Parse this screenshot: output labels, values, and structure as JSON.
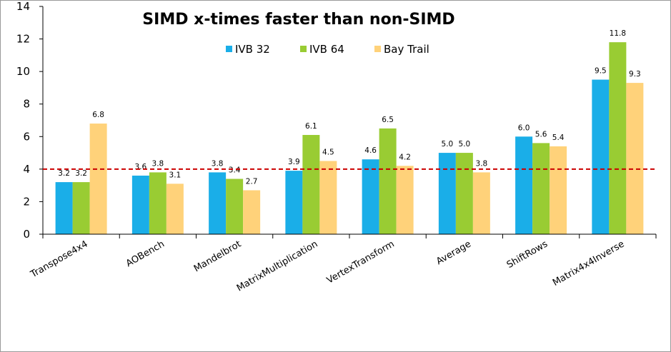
{
  "chart_data": {
    "type": "bar",
    "title": "SIMD x-times faster than non-SIMD",
    "categories": [
      "Transpose4x4",
      "AOBench",
      "Mandelbrot",
      "MatrixMultiplication",
      "VertexTransform",
      "Average",
      "ShiftRows",
      "Matrix4x4Inverse"
    ],
    "series": [
      {
        "name": "IVB 32",
        "color": "#1aaee8",
        "values": [
          3.2,
          3.6,
          3.8,
          3.9,
          4.6,
          5.0,
          6.0,
          9.5
        ],
        "labels": [
          "3.2",
          "3.6",
          "3.8",
          "3.9",
          "4.6",
          "5.0",
          "6.0",
          "9.5"
        ]
      },
      {
        "name": "IVB 64",
        "color": "#99cc33",
        "values": [
          3.2,
          3.8,
          3.4,
          6.1,
          6.5,
          5.0,
          5.6,
          11.8
        ],
        "labels": [
          "3.2",
          "3.8",
          "3.4",
          "6.1",
          "6.5",
          "5.0",
          "5.6",
          "11.8"
        ]
      },
      {
        "name": "Bay Trail",
        "color": "#ffd27a",
        "values": [
          6.8,
          3.1,
          2.7,
          4.5,
          4.2,
          3.8,
          5.4,
          9.3
        ],
        "labels": [
          "6.8",
          "3.1",
          "2.7",
          "4.5",
          "4.2",
          "3.8",
          "5.4",
          "9.3"
        ]
      }
    ],
    "ylim": [
      0,
      14
    ],
    "yticks": [
      "0",
      "2",
      "4",
      "6",
      "8",
      "10",
      "12",
      "14"
    ],
    "reference_line": {
      "value": 4,
      "color": "#cc0000",
      "style": "dashed"
    },
    "legend_position": "top-center",
    "grid": false
  }
}
